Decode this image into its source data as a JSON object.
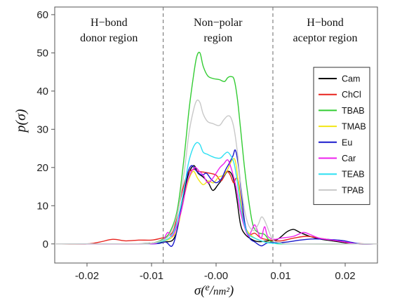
{
  "chart_data": {
    "type": "line",
    "xlabel": "σ(e/nm²)",
    "ylabel": "p(σ)",
    "xlim": [
      -0.025,
      0.025
    ],
    "ylim": [
      -5,
      62
    ],
    "x_ticks": [
      {
        "value": -0.02,
        "label": "-0.02"
      },
      {
        "value": -0.01,
        "label": "-0.01"
      },
      {
        "value": 0.0,
        "label": "-0.00"
      },
      {
        "value": 0.01,
        "label": "0.01"
      },
      {
        "value": 0.02,
        "label": "0.02"
      }
    ],
    "y_ticks": [
      {
        "value": 0,
        "label": "0"
      },
      {
        "value": 10,
        "label": "10"
      },
      {
        "value": 20,
        "label": "20"
      },
      {
        "value": 30,
        "label": "30"
      },
      {
        "value": 40,
        "label": "40"
      },
      {
        "value": 50,
        "label": "50"
      },
      {
        "value": 60,
        "label": "60"
      }
    ],
    "region_boundaries": [
      -0.0082,
      0.0088
    ],
    "regions": [
      {
        "lines": [
          "H−bond",
          "donor region"
        ],
        "anchor": "left"
      },
      {
        "lines": [
          "Non−polar",
          "region"
        ],
        "anchor": "center"
      },
      {
        "lines": [
          "H−bond",
          "aceptor region"
        ],
        "anchor": "right"
      }
    ],
    "legend_position": "right",
    "grid": false,
    "series": [
      {
        "name": "Cam",
        "color": "#000000",
        "points": [
          [
            -0.025,
            0
          ],
          [
            -0.013,
            0
          ],
          [
            -0.01,
            0.2
          ],
          [
            -0.008,
            0.5
          ],
          [
            -0.0065,
            1.5
          ],
          [
            -0.0055,
            8
          ],
          [
            -0.0045,
            17
          ],
          [
            -0.0035,
            20.5
          ],
          [
            -0.0028,
            18.5
          ],
          [
            -0.002,
            17.5
          ],
          [
            -0.0012,
            16
          ],
          [
            -0.0005,
            14
          ],
          [
            0.0003,
            15.5
          ],
          [
            0.001,
            17
          ],
          [
            0.0018,
            19
          ],
          [
            0.0026,
            17.5
          ],
          [
            0.0032,
            12
          ],
          [
            0.0038,
            5
          ],
          [
            0.0045,
            2.5
          ],
          [
            0.0055,
            1.2
          ],
          [
            0.0065,
            0.6
          ],
          [
            0.008,
            0.8
          ],
          [
            0.0095,
            1.2
          ],
          [
            0.011,
            3.2
          ],
          [
            0.012,
            3.8
          ],
          [
            0.013,
            3
          ],
          [
            0.0145,
            2
          ],
          [
            0.016,
            1.3
          ],
          [
            0.018,
            0.8
          ],
          [
            0.02,
            0.3
          ],
          [
            0.022,
            0
          ],
          [
            0.025,
            0
          ]
        ]
      },
      {
        "name": "ChCl",
        "color": "#e8231e",
        "points": [
          [
            -0.025,
            0
          ],
          [
            -0.02,
            0
          ],
          [
            -0.018,
            0.5
          ],
          [
            -0.016,
            1.2
          ],
          [
            -0.014,
            0.8
          ],
          [
            -0.012,
            1
          ],
          [
            -0.01,
            1
          ],
          [
            -0.0085,
            1.5
          ],
          [
            -0.0075,
            2
          ],
          [
            -0.0065,
            4
          ],
          [
            -0.0055,
            12
          ],
          [
            -0.0045,
            18
          ],
          [
            -0.0035,
            19.5
          ],
          [
            -0.0028,
            19
          ],
          [
            -0.002,
            18.8
          ],
          [
            -0.001,
            18.5
          ],
          [
            0,
            18
          ],
          [
            0.0008,
            16.5
          ],
          [
            0.0016,
            19
          ],
          [
            0.0022,
            18
          ],
          [
            0.0027,
            16
          ],
          [
            0.0031,
            17.2
          ],
          [
            0.0035,
            16
          ],
          [
            0.004,
            9
          ],
          [
            0.0046,
            4
          ],
          [
            0.0053,
            2.5
          ],
          [
            0.006,
            2.8
          ],
          [
            0.007,
            1.5
          ],
          [
            0.0085,
            1
          ],
          [
            0.01,
            0.8
          ],
          [
            0.012,
            1.5
          ],
          [
            0.014,
            2
          ],
          [
            0.016,
            1.5
          ],
          [
            0.018,
            1
          ],
          [
            0.0195,
            0.6
          ],
          [
            0.021,
            0.2
          ],
          [
            0.023,
            0
          ],
          [
            0.025,
            0
          ]
        ]
      },
      {
        "name": "TBAB",
        "color": "#33cc33",
        "points": [
          [
            -0.025,
            0
          ],
          [
            -0.012,
            0
          ],
          [
            -0.01,
            0.2
          ],
          [
            -0.0085,
            1
          ],
          [
            -0.0072,
            3
          ],
          [
            -0.006,
            9
          ],
          [
            -0.005,
            22
          ],
          [
            -0.0042,
            35
          ],
          [
            -0.0035,
            44
          ],
          [
            -0.003,
            49
          ],
          [
            -0.0025,
            50
          ],
          [
            -0.002,
            46.5
          ],
          [
            -0.0013,
            44
          ],
          [
            -0.0005,
            43.3
          ],
          [
            0.0005,
            43
          ],
          [
            0.0013,
            42.5
          ],
          [
            0.0018,
            43.5
          ],
          [
            0.0023,
            43.8
          ],
          [
            0.0028,
            43
          ],
          [
            0.0033,
            38
          ],
          [
            0.0038,
            30
          ],
          [
            0.0044,
            20
          ],
          [
            0.005,
            12
          ],
          [
            0.0057,
            5
          ],
          [
            0.0065,
            3
          ],
          [
            0.0075,
            2.5
          ],
          [
            0.0082,
            1
          ],
          [
            0.009,
            0.3
          ],
          [
            0.011,
            0
          ],
          [
            0.025,
            0
          ]
        ]
      },
      {
        "name": "TMAB",
        "color": "#f2e614",
        "points": [
          [
            -0.025,
            0
          ],
          [
            -0.012,
            0
          ],
          [
            -0.01,
            0.2
          ],
          [
            -0.0085,
            0.6
          ],
          [
            -0.007,
            1.5
          ],
          [
            -0.006,
            4
          ],
          [
            -0.005,
            12
          ],
          [
            -0.0042,
            17
          ],
          [
            -0.0035,
            19
          ],
          [
            -0.0028,
            17
          ],
          [
            -0.002,
            15.5
          ],
          [
            -0.0012,
            16.5
          ],
          [
            -0.0004,
            16
          ],
          [
            0.0004,
            17.5
          ],
          [
            0.0012,
            18
          ],
          [
            0.0018,
            19.5
          ],
          [
            0.0025,
            22
          ],
          [
            0.003,
            21.5
          ],
          [
            0.0036,
            14
          ],
          [
            0.0042,
            6
          ],
          [
            0.005,
            3
          ],
          [
            0.006,
            1.5
          ],
          [
            0.007,
            0.8
          ],
          [
            0.008,
            0.4
          ],
          [
            0.01,
            0.2
          ],
          [
            0.012,
            0
          ],
          [
            0.025,
            0
          ]
        ]
      },
      {
        "name": "Eu",
        "color": "#1a1acc",
        "points": [
          [
            -0.025,
            0
          ],
          [
            -0.012,
            0
          ],
          [
            -0.009,
            0.1
          ],
          [
            -0.0078,
            0.5
          ],
          [
            -0.0068,
            -0.5
          ],
          [
            -0.006,
            4
          ],
          [
            -0.0052,
            12
          ],
          [
            -0.0045,
            18
          ],
          [
            -0.0038,
            20.5
          ],
          [
            -0.003,
            19
          ],
          [
            -0.0022,
            18
          ],
          [
            -0.0015,
            18.5
          ],
          [
            -0.0008,
            17
          ],
          [
            0,
            16
          ],
          [
            0.0008,
            17
          ],
          [
            0.0015,
            19.5
          ],
          [
            0.002,
            21
          ],
          [
            0.0026,
            23
          ],
          [
            0.003,
            24.5
          ],
          [
            0.0035,
            20
          ],
          [
            0.004,
            12
          ],
          [
            0.0045,
            5
          ],
          [
            0.0052,
            1.5
          ],
          [
            0.006,
            0.5
          ],
          [
            0.007,
            -0.5
          ],
          [
            0.008,
            0.3
          ],
          [
            0.0095,
            0.3
          ],
          [
            0.011,
            0.5
          ],
          [
            0.013,
            1
          ],
          [
            0.015,
            1.3
          ],
          [
            0.017,
            1.2
          ],
          [
            0.0195,
            0.9
          ],
          [
            0.021,
            0.4
          ],
          [
            0.0225,
            0
          ],
          [
            0.025,
            0
          ]
        ]
      },
      {
        "name": "Car",
        "color": "#ee22ee",
        "points": [
          [
            -0.025,
            0
          ],
          [
            -0.011,
            0
          ],
          [
            -0.009,
            0.5
          ],
          [
            -0.0082,
            1
          ],
          [
            -0.0075,
            3
          ],
          [
            -0.0068,
            2
          ],
          [
            -0.006,
            5
          ],
          [
            -0.0052,
            10
          ],
          [
            -0.0045,
            16
          ],
          [
            -0.0038,
            19
          ],
          [
            -0.0032,
            20
          ],
          [
            -0.0026,
            19
          ],
          [
            -0.002,
            18
          ],
          [
            -0.0013,
            16
          ],
          [
            -0.0006,
            17
          ],
          [
            0,
            18.5
          ],
          [
            0.0006,
            20
          ],
          [
            0.0012,
            21
          ],
          [
            0.0018,
            22
          ],
          [
            0.0023,
            20
          ],
          [
            0.0028,
            17
          ],
          [
            0.0032,
            14
          ],
          [
            0.0037,
            9
          ],
          [
            0.0043,
            5
          ],
          [
            0.005,
            2
          ],
          [
            0.0055,
            3.5
          ],
          [
            0.006,
            5
          ],
          [
            0.0065,
            3
          ],
          [
            0.007,
            1.5
          ],
          [
            0.0075,
            4.5
          ],
          [
            0.008,
            2
          ],
          [
            0.009,
            1.2
          ],
          [
            0.01,
            1.5
          ],
          [
            0.012,
            2
          ],
          [
            0.0135,
            3
          ],
          [
            0.0145,
            2.5
          ],
          [
            0.016,
            1.5
          ],
          [
            0.018,
            1
          ],
          [
            0.02,
            0.5
          ],
          [
            0.022,
            0
          ],
          [
            0.025,
            0
          ]
        ]
      },
      {
        "name": "TEAB",
        "color": "#2ee0f2",
        "points": [
          [
            -0.025,
            0
          ],
          [
            -0.012,
            0
          ],
          [
            -0.01,
            0.2
          ],
          [
            -0.0085,
            0.6
          ],
          [
            -0.007,
            2
          ],
          [
            -0.006,
            6
          ],
          [
            -0.005,
            14
          ],
          [
            -0.0043,
            21
          ],
          [
            -0.0036,
            25
          ],
          [
            -0.003,
            26.5
          ],
          [
            -0.0025,
            26
          ],
          [
            -0.002,
            24
          ],
          [
            -0.0014,
            23.5
          ],
          [
            -0.0008,
            23
          ],
          [
            0,
            22.5
          ],
          [
            0.0007,
            22.5
          ],
          [
            0.0013,
            23.5
          ],
          [
            0.0018,
            24
          ],
          [
            0.0023,
            23
          ],
          [
            0.0028,
            21
          ],
          [
            0.0033,
            16
          ],
          [
            0.0038,
            10
          ],
          [
            0.0044,
            5
          ],
          [
            0.005,
            2.5
          ],
          [
            0.006,
            1.5
          ],
          [
            0.007,
            0.8
          ],
          [
            0.008,
            0.3
          ],
          [
            0.01,
            0.1
          ],
          [
            0.012,
            0
          ],
          [
            0.025,
            0
          ]
        ]
      },
      {
        "name": "TPAB",
        "color": "#c8c8c8",
        "points": [
          [
            -0.025,
            0
          ],
          [
            -0.012,
            0
          ],
          [
            -0.01,
            0.2
          ],
          [
            -0.0085,
            0.8
          ],
          [
            -0.0072,
            2.5
          ],
          [
            -0.006,
            8
          ],
          [
            -0.005,
            18
          ],
          [
            -0.0042,
            29
          ],
          [
            -0.0035,
            35
          ],
          [
            -0.003,
            37.5
          ],
          [
            -0.0025,
            37
          ],
          [
            -0.002,
            34
          ],
          [
            -0.0013,
            32
          ],
          [
            -0.0005,
            31.5
          ],
          [
            0.0005,
            31
          ],
          [
            0.0012,
            32.5
          ],
          [
            0.0018,
            33.5
          ],
          [
            0.0023,
            33
          ],
          [
            0.0028,
            30
          ],
          [
            0.0033,
            24
          ],
          [
            0.0038,
            16
          ],
          [
            0.0044,
            9
          ],
          [
            0.005,
            5
          ],
          [
            0.0058,
            3.5
          ],
          [
            0.0065,
            5
          ],
          [
            0.007,
            7
          ],
          [
            0.0074,
            6.5
          ],
          [
            0.0078,
            5
          ],
          [
            0.0085,
            2
          ],
          [
            0.009,
            0.8
          ],
          [
            0.01,
            0.3
          ],
          [
            0.012,
            0
          ],
          [
            0.025,
            0
          ]
        ]
      }
    ]
  }
}
